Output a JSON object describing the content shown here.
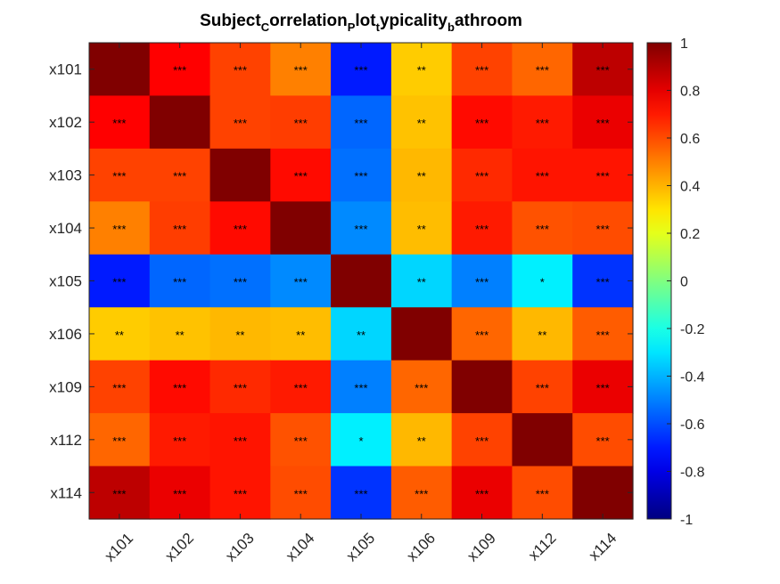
{
  "chart_data": {
    "type": "heatmap",
    "title": {
      "parts": [
        {
          "text": "Subject",
          "sub": false
        },
        {
          "text": "C",
          "sub": true
        },
        {
          "text": "orrelation",
          "sub": false
        },
        {
          "text": "P",
          "sub": true
        },
        {
          "text": "lot",
          "sub": false
        },
        {
          "text": "t",
          "sub": true
        },
        {
          "text": "ypicality",
          "sub": false
        },
        {
          "text": "b",
          "sub": true
        },
        {
          "text": "athroom",
          "sub": false
        }
      ]
    },
    "row_labels": [
      "x101",
      "x102",
      "x103",
      "x104",
      "x105",
      "x106",
      "x109",
      "x112",
      "x114"
    ],
    "col_labels": [
      "x101",
      "x102",
      "x103",
      "x104",
      "x105",
      "x106",
      "x109",
      "x112",
      "x114"
    ],
    "values": [
      [
        1.0,
        0.75,
        0.62,
        0.5,
        -0.7,
        0.35,
        0.62,
        0.55,
        0.88
      ],
      [
        0.75,
        1.0,
        0.62,
        0.63,
        -0.55,
        0.37,
        0.73,
        0.7,
        0.79
      ],
      [
        0.62,
        0.62,
        1.0,
        0.73,
        -0.53,
        0.39,
        0.67,
        0.71,
        0.71
      ],
      [
        0.5,
        0.63,
        0.73,
        1.0,
        -0.48,
        0.38,
        0.7,
        0.59,
        0.6
      ],
      [
        -0.7,
        -0.55,
        -0.53,
        -0.48,
        1.0,
        -0.33,
        -0.5,
        -0.28,
        -0.65
      ],
      [
        0.35,
        0.37,
        0.39,
        0.38,
        -0.33,
        1.0,
        0.55,
        0.39,
        0.57
      ],
      [
        0.62,
        0.73,
        0.67,
        0.7,
        -0.5,
        0.55,
        1.0,
        0.62,
        0.79
      ],
      [
        0.55,
        0.7,
        0.71,
        0.59,
        -0.28,
        0.39,
        0.62,
        1.0,
        0.6
      ],
      [
        0.88,
        0.79,
        0.71,
        0.6,
        -0.65,
        0.57,
        0.79,
        0.6,
        1.0
      ]
    ],
    "significance": [
      [
        "",
        "***",
        "***",
        "***",
        "***",
        "**",
        "***",
        "***",
        "***"
      ],
      [
        "***",
        "",
        "***",
        "***",
        "***",
        "**",
        "***",
        "***",
        "***"
      ],
      [
        "***",
        "***",
        "",
        "***",
        "***",
        "**",
        "***",
        "***",
        "***"
      ],
      [
        "***",
        "***",
        "***",
        "",
        "***",
        "**",
        "***",
        "***",
        "***"
      ],
      [
        "***",
        "***",
        "***",
        "***",
        "",
        "**",
        "***",
        "*",
        "***"
      ],
      [
        "**",
        "**",
        "**",
        "**",
        "**",
        "",
        "***",
        "**",
        "***"
      ],
      [
        "***",
        "***",
        "***",
        "***",
        "***",
        "***",
        "",
        "***",
        "***"
      ],
      [
        "***",
        "***",
        "***",
        "***",
        "*",
        "**",
        "***",
        "",
        "***"
      ],
      [
        "***",
        "***",
        "***",
        "***",
        "***",
        "***",
        "***",
        "***",
        ""
      ]
    ],
    "colormap": "jet",
    "color_range": [
      -1,
      1
    ],
    "colorbar_ticks": [
      "1",
      "0.8",
      "0.6",
      "0.4",
      "0.2",
      "0",
      "-0.2",
      "-0.4",
      "-0.6",
      "-0.8",
      "-1"
    ],
    "colorbar_tick_values": [
      1,
      0.8,
      0.6,
      0.4,
      0.2,
      0,
      -0.2,
      -0.4,
      -0.6,
      -0.8,
      -1
    ],
    "grid": false,
    "legend": "colorbar-right"
  }
}
